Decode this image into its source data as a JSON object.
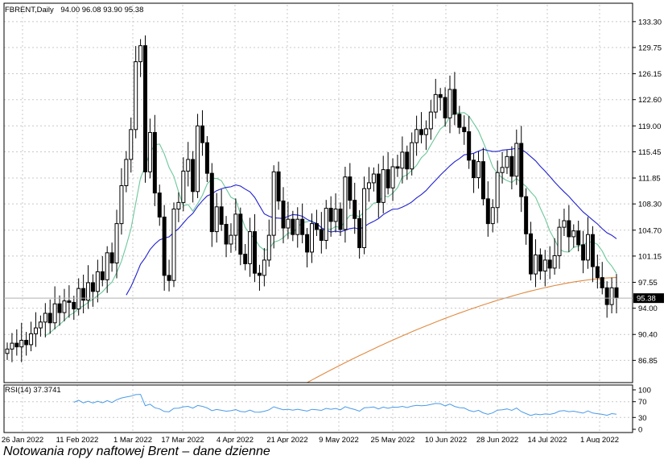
{
  "header": {
    "symbol": "FBRENT,Daily",
    "ohlc": "94.00 96.08 93.90 95.38"
  },
  "caption": "Notowania ropy naftowej Brent – dane dzienne",
  "chart_data": [
    {
      "type": "candlestick",
      "title": "FBRENT,Daily",
      "price_ticks": [
        "133.30",
        "129.75",
        "126.15",
        "122.60",
        "119.00",
        "115.45",
        "111.85",
        "108.30",
        "104.70",
        "101.15",
        "97.55",
        "94.00",
        "90.40",
        "86.85"
      ],
      "ylim": [
        83.8,
        135.6
      ],
      "current_price": "95.38",
      "date_labels": [
        "26 Jan 2022",
        "11 Feb 2022",
        "1 Mar 2022",
        "17 Mar 2022",
        "4 Apr 2022",
        "21 Apr 2022",
        "9 May 2022",
        "25 May 2022",
        "10 Jun 2022",
        "28 Jun 2022",
        "14 Jul 2022",
        "1 Aug 2022"
      ],
      "grid": true,
      "close": [
        88.4,
        89.2,
        88.7,
        89.6,
        89.0,
        90.5,
        91.3,
        92.1,
        93.3,
        92.0,
        94.6,
        93.4,
        95.0,
        94.8,
        93.9,
        96.7,
        95.1,
        97.5,
        96.3,
        99.0,
        97.9,
        101.6,
        100.2,
        105.6,
        110.8,
        114.4,
        118.5,
        127.8,
        130.0,
        112.7,
        118.1,
        109.8,
        106.5,
        98.5,
        97.8,
        107.6,
        108.5,
        112.8,
        114.4,
        110.0,
        119.0,
        116.7,
        112.5,
        104.5,
        107.9,
        105.5,
        102.8,
        104.0,
        106.9,
        101.4,
        100.1,
        104.5,
        98.8,
        98.5,
        100.6,
        104.0,
        112.7,
        108.7,
        105.0,
        106.2,
        104.1,
        106.2,
        104.1,
        101.7,
        105.6,
        104.8,
        103.3,
        107.7,
        105.9,
        107.6,
        104.8,
        112.0,
        108.8,
        106.3,
        102.3,
        110.4,
        111.2,
        112.4,
        108.5,
        113.0,
        110.5,
        113.4,
        113.2,
        115.4,
        113.1,
        116.7,
        118.5,
        117.8,
        118.6,
        120.9,
        123.3,
        122.9,
        120.1,
        124.0,
        120.6,
        118.8,
        118.2,
        114.3,
        111.9,
        114.1,
        109.0,
        105.6,
        107.8,
        112.6,
        113.3,
        114.8,
        112.1,
        116.6,
        109.3,
        104.2,
        98.7,
        101.3,
        99.1,
        100.6,
        99.5,
        101.2,
        105.1,
        106.0,
        103.8,
        104.6,
        102.7,
        100.6,
        104.1,
        99.7,
        98.2,
        96.8,
        94.5,
        96.8,
        95.4
      ],
      "ma_fast": [],
      "ma_slow": [],
      "ma_long": [],
      "indicator": {
        "label": "RSI(14) 37.3741",
        "ticks": [
          "100",
          "70",
          "30",
          "0"
        ],
        "ylim": [
          0,
          100
        ]
      }
    }
  ]
}
